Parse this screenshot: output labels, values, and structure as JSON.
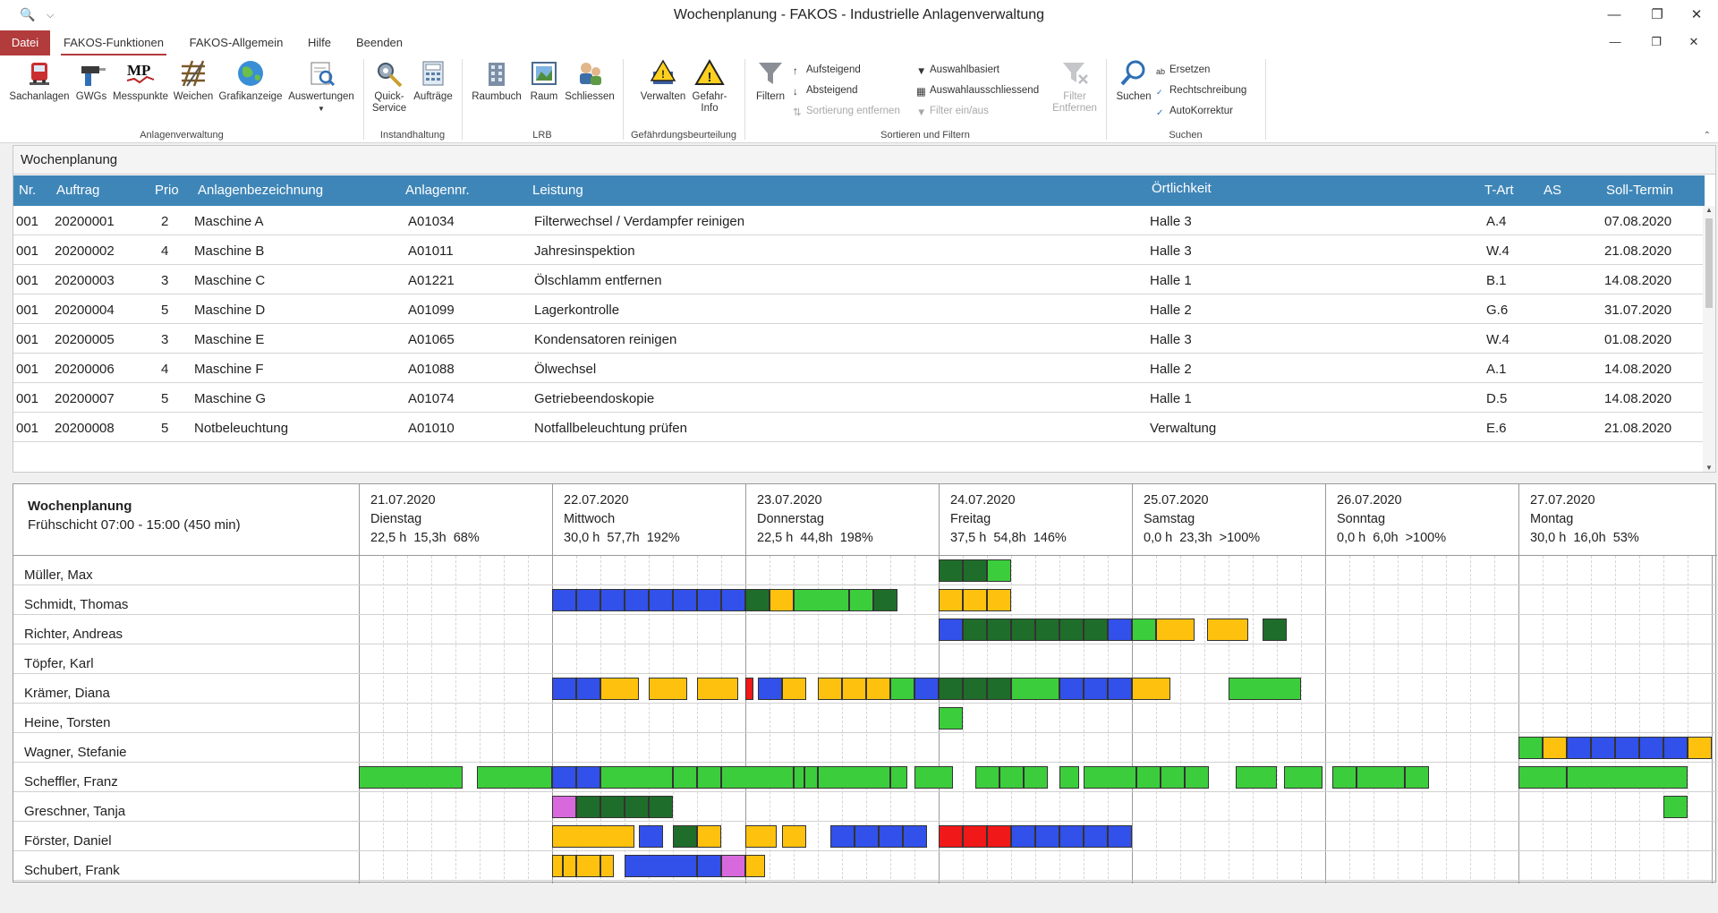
{
  "titlebar": {
    "title": "Wochenplanung - FAKOS - Industrielle Anlagenverwaltung",
    "minimize": "—",
    "restore": "❐",
    "close": "✕"
  },
  "menu_tabs": [
    "Datei",
    "FAKOS-Funktionen",
    "FAKOS-Allgemein",
    "Hilfe",
    "Beenden"
  ],
  "ribbon": {
    "groups": [
      "Anlagenverwaltung",
      "Instandhaltung",
      "LRB",
      "Gefährdungsbeurteilung",
      "Sortieren und Filtern",
      "Suchen"
    ],
    "buttons": {
      "sachanlagen": "Sachanlagen",
      "gwgs": "GWGs",
      "messpunkte": "Messpunkte",
      "weichen": "Weichen",
      "grafikanzeige": "Grafikanzeige",
      "auswertungen": "Auswertungen",
      "quick_service": "Quick-\nService",
      "auftraege": "Aufträge",
      "raumbuch": "Raumbuch",
      "raum": "Raum",
      "schliessen": "Schliessen",
      "verwalten": "Verwalten",
      "gefahr_info": "Gefahr-\nInfo",
      "filtern": "Filtern",
      "aufsteigend": "Aufsteigend",
      "absteigend": "Absteigend",
      "sortierung_entfernen": "Sortierung entfernen",
      "auswahlbasiert": "Auswahlbasiert",
      "auswahlausschliessend": "Auswahlausschliessend",
      "filter_ein_aus": "Filter ein/aus",
      "filter_entfernen": "Filter\nEntfernen",
      "suchen": "Suchen",
      "ersetzen": "Ersetzen",
      "rechtschreibung": "Rechtschreibung",
      "autokorrektur": "AutoKorrektur"
    },
    "mp_logo": "MP"
  },
  "table": {
    "panel_title": "Wochenplanung",
    "columns": [
      "Nr.",
      "Auftrag",
      "Prio",
      "Anlagenbezeichnung",
      "Anlagennr.",
      "Leistung",
      "Örtlichkeit",
      "T-Art",
      "AS",
      "Soll-Termin"
    ],
    "rows": [
      [
        "001",
        "20200001",
        "2",
        "Maschine A",
        "A01034",
        "Filterwechsel / Verdampfer reinigen",
        "Halle 3",
        "A.4",
        "",
        "07.08.2020"
      ],
      [
        "001",
        "20200002",
        "4",
        "Maschine B",
        "A01011",
        "Jahresinspektion",
        "Halle 3",
        "W.4",
        "",
        "21.08.2020"
      ],
      [
        "001",
        "20200003",
        "3",
        "Maschine C",
        "A01221",
        "Ölschlamm entfernen",
        "Halle 1",
        "B.1",
        "",
        "14.08.2020"
      ],
      [
        "001",
        "20200004",
        "5",
        "Maschine D",
        "A01099",
        "Lagerkontrolle",
        "Halle 2",
        "G.6",
        "",
        "31.07.2020"
      ],
      [
        "001",
        "20200005",
        "3",
        "Maschine E",
        "A01065",
        "Kondensatoren reinigen",
        "Halle 3",
        "W.4",
        "",
        "01.08.2020"
      ],
      [
        "001",
        "20200006",
        "4",
        "Maschine F",
        "A01088",
        "Ölwechsel",
        "Halle 2",
        "A.1",
        "",
        "14.08.2020"
      ],
      [
        "001",
        "20200007",
        "5",
        "Maschine G",
        "A01074",
        "Getriebeendoskopie",
        "Halle 1",
        "D.5",
        "",
        "14.08.2020"
      ],
      [
        "001",
        "20200008",
        "5",
        "Notbeleuchtung",
        "A01010",
        "Notfallbeleuchtung prüfen",
        "Verwaltung",
        "E.6",
        "",
        "21.08.2020"
      ]
    ]
  },
  "planner": {
    "title": "Wochenplanung",
    "shift": "Frühschicht 07:00 - 15:00 (450 min)",
    "days": [
      {
        "date": "21.07.2020",
        "weekday": "Dienstag",
        "stats": "22,5 h  15,3h  68%"
      },
      {
        "date": "22.07.2020",
        "weekday": "Mittwoch",
        "stats": "30,0 h  57,7h  192%"
      },
      {
        "date": "23.07.2020",
        "weekday": "Donnerstag",
        "stats": "22,5 h  44,8h  198%"
      },
      {
        "date": "24.07.2020",
        "weekday": "Freitag",
        "stats": "37,5 h  54,8h  146%"
      },
      {
        "date": "25.07.2020",
        "weekday": "Samstag",
        "stats": "0,0 h  23,3h  >100%"
      },
      {
        "date": "26.07.2020",
        "weekday": "Sonntag",
        "stats": "0,0 h  6,0h  >100%"
      },
      {
        "date": "27.07.2020",
        "weekday": "Montag",
        "stats": "30,0 h  16,0h  53%"
      }
    ],
    "colors": {
      "G": "#3ccd3c",
      "D": "#1f6d2a",
      "B": "#3250ea",
      "Y": "#fec20e",
      "R": "#f01818",
      "P": "#d869dc"
    },
    "staff": [
      {
        "name": "Müller, Max",
        "tasks": [
          [
            24,
            "D"
          ],
          [
            25,
            "D"
          ],
          [
            26,
            "G"
          ]
        ]
      },
      {
        "name": "Schmidt, Thomas",
        "tasks": [
          [
            8,
            "B"
          ],
          [
            9,
            "B"
          ],
          [
            10,
            "B"
          ],
          [
            11,
            "B"
          ],
          [
            12,
            "B"
          ],
          [
            13,
            "B"
          ],
          [
            14,
            "B"
          ],
          [
            15,
            "B"
          ],
          [
            16,
            "D"
          ],
          [
            17,
            "Y"
          ],
          [
            18,
            "G",
            2.3
          ],
          [
            20.3,
            "G"
          ],
          [
            21.3,
            "D"
          ],
          [
            24,
            "Y"
          ],
          [
            25,
            "Y"
          ],
          [
            26,
            "Y"
          ]
        ]
      },
      {
        "name": "Richter, Andreas",
        "tasks": [
          [
            24,
            "B"
          ],
          [
            25,
            "D"
          ],
          [
            26,
            "D"
          ],
          [
            27,
            "D"
          ],
          [
            28,
            "D"
          ],
          [
            29,
            "D"
          ],
          [
            30,
            "D"
          ],
          [
            31,
            "B"
          ],
          [
            32,
            "G"
          ],
          [
            33,
            "Y",
            1.6
          ],
          [
            35.1,
            "Y",
            1.7
          ],
          [
            37.4,
            "D"
          ]
        ]
      },
      {
        "name": "Töpfer, Karl",
        "tasks": []
      },
      {
        "name": "Krämer, Diana",
        "tasks": [
          [
            8,
            "B"
          ],
          [
            9,
            "B"
          ],
          [
            10,
            "Y",
            1.6
          ],
          [
            12,
            "Y",
            1.6
          ],
          [
            14,
            "Y",
            1.7
          ],
          [
            16,
            "R",
            0.35
          ],
          [
            16.5,
            "B"
          ],
          [
            17.5,
            "Y"
          ],
          [
            19,
            "Y"
          ],
          [
            20,
            "Y"
          ],
          [
            21,
            "Y"
          ],
          [
            22,
            "G"
          ],
          [
            23,
            "B"
          ],
          [
            24,
            "D"
          ],
          [
            25,
            "D"
          ],
          [
            26,
            "D"
          ],
          [
            27,
            "G",
            2
          ],
          [
            29,
            "B"
          ],
          [
            30,
            "B"
          ],
          [
            31,
            "B"
          ],
          [
            32,
            "Y",
            1.6
          ],
          [
            36,
            "G",
            3
          ]
        ]
      },
      {
        "name": "Heine, Torsten",
        "tasks": [
          [
            24,
            "G"
          ]
        ]
      },
      {
        "name": "Wagner, Stefanie",
        "tasks": [
          [
            48,
            "G"
          ],
          [
            49,
            "Y"
          ],
          [
            50,
            "B"
          ],
          [
            51,
            "B"
          ],
          [
            52,
            "B"
          ],
          [
            53,
            "B"
          ],
          [
            54,
            "B"
          ],
          [
            55,
            "Y"
          ]
        ]
      },
      {
        "name": "Scheffler, Franz",
        "tasks": [
          [
            0,
            "G",
            4.3
          ],
          [
            4.9,
            "G",
            3.1
          ],
          [
            8,
            "B"
          ],
          [
            9,
            "B"
          ],
          [
            10,
            "G",
            3
          ],
          [
            13,
            "G"
          ],
          [
            14,
            "G"
          ],
          [
            15,
            "G",
            3
          ],
          [
            18,
            "G",
            0.45
          ],
          [
            18.45,
            "G",
            0.55
          ],
          [
            19,
            "G",
            3
          ],
          [
            22,
            "G",
            0.7
          ],
          [
            23,
            "G",
            1.6
          ],
          [
            25.5,
            "G"
          ],
          [
            26.5,
            "G"
          ],
          [
            27.5,
            "G"
          ],
          [
            29,
            "G",
            0.8
          ],
          [
            30,
            "G",
            2.2
          ],
          [
            32.2,
            "G"
          ],
          [
            33.2,
            "G"
          ],
          [
            34.2,
            "G"
          ],
          [
            36.3,
            "G",
            1.7
          ],
          [
            38.3,
            "G",
            1.6
          ],
          [
            40.3,
            "G"
          ],
          [
            41.3,
            "G",
            2
          ],
          [
            43.3,
            "G"
          ],
          [
            48,
            "G",
            2
          ],
          [
            50,
            "G",
            5
          ]
        ]
      },
      {
        "name": "Greschner, Tanja",
        "tasks": [
          [
            8,
            "P"
          ],
          [
            9,
            "D"
          ],
          [
            10,
            "D"
          ],
          [
            11,
            "D"
          ],
          [
            12,
            "D"
          ],
          [
            54,
            "G"
          ]
        ]
      },
      {
        "name": "Förster, Daniel",
        "tasks": [
          [
            8,
            "Y",
            3.4
          ],
          [
            11.6,
            "B"
          ],
          [
            13,
            "D"
          ],
          [
            14,
            "Y"
          ],
          [
            16,
            "Y",
            1.3
          ],
          [
            17.5,
            "Y"
          ],
          [
            19.5,
            "B"
          ],
          [
            20.5,
            "B"
          ],
          [
            21.5,
            "B"
          ],
          [
            22.5,
            "B"
          ],
          [
            24,
            "R"
          ],
          [
            25,
            "R"
          ],
          [
            26,
            "R"
          ],
          [
            27,
            "B"
          ],
          [
            28,
            "B"
          ],
          [
            29,
            "B"
          ],
          [
            30,
            "B"
          ],
          [
            31,
            "B"
          ]
        ]
      },
      {
        "name": "Schubert, Frank",
        "tasks": [
          [
            8,
            "Y",
            0.45
          ],
          [
            8.45,
            "Y",
            0.55
          ],
          [
            9,
            "Y"
          ],
          [
            10,
            "Y",
            0.55
          ],
          [
            11,
            "B",
            3
          ],
          [
            14,
            "B"
          ],
          [
            15,
            "P"
          ],
          [
            16,
            "Y",
            0.8
          ]
        ]
      }
    ]
  }
}
